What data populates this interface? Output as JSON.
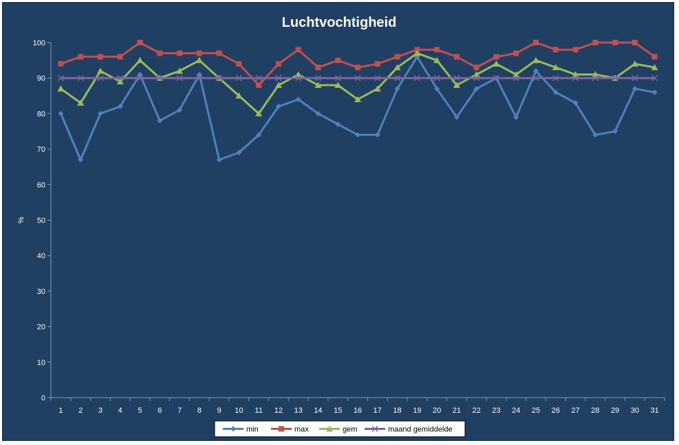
{
  "chart_data": {
    "type": "line",
    "title": "Luchtvochtigheid",
    "xlabel": "",
    "ylabel": "%",
    "ylim": [
      0,
      100
    ],
    "yticks": [
      0,
      10,
      20,
      30,
      40,
      50,
      60,
      70,
      80,
      90,
      100
    ],
    "categories": [
      "1",
      "2",
      "3",
      "4",
      "5",
      "6",
      "7",
      "8",
      "9",
      "10",
      "11",
      "12",
      "13",
      "14",
      "15",
      "16",
      "17",
      "18",
      "19",
      "20",
      "21",
      "22",
      "23",
      "24",
      "25",
      "26",
      "27",
      "28",
      "29",
      "30",
      "31"
    ],
    "grid": false,
    "legend_position": "bottom",
    "series": [
      {
        "name": "min",
        "color": "#4f81bd",
        "marker": "diamond",
        "values": [
          80,
          67,
          80,
          82,
          91,
          78,
          81,
          91,
          67,
          69,
          74,
          82,
          84,
          80,
          77,
          74,
          74,
          87,
          96,
          87,
          79,
          87,
          90,
          79,
          92,
          86,
          83,
          74,
          75,
          87,
          86
        ]
      },
      {
        "name": "max",
        "color": "#c0504d",
        "marker": "square",
        "values": [
          94,
          96,
          96,
          96,
          100,
          97,
          97,
          97,
          97,
          94,
          88,
          94,
          98,
          93,
          95,
          93,
          94,
          96,
          98,
          98,
          96,
          93,
          96,
          97,
          100,
          98,
          98,
          100,
          100,
          100,
          96
        ]
      },
      {
        "name": "gem",
        "color": "#9bbb59",
        "marker": "triangle",
        "values": [
          87,
          83,
          92,
          89,
          95,
          90,
          92,
          95,
          90,
          85,
          80,
          88,
          91,
          88,
          88,
          84,
          87,
          93,
          97,
          95,
          88,
          91,
          94,
          91,
          95,
          93,
          91,
          91,
          90,
          94,
          93
        ]
      },
      {
        "name": "maand gemiddelde",
        "color": "#8064a2",
        "marker": "x",
        "values": [
          90,
          90,
          90,
          90,
          90,
          90,
          90,
          90,
          90,
          90,
          90,
          90,
          90,
          90,
          90,
          90,
          90,
          90,
          90,
          90,
          90,
          90,
          90,
          90,
          90,
          90,
          90,
          90,
          90,
          90,
          90
        ]
      }
    ]
  }
}
